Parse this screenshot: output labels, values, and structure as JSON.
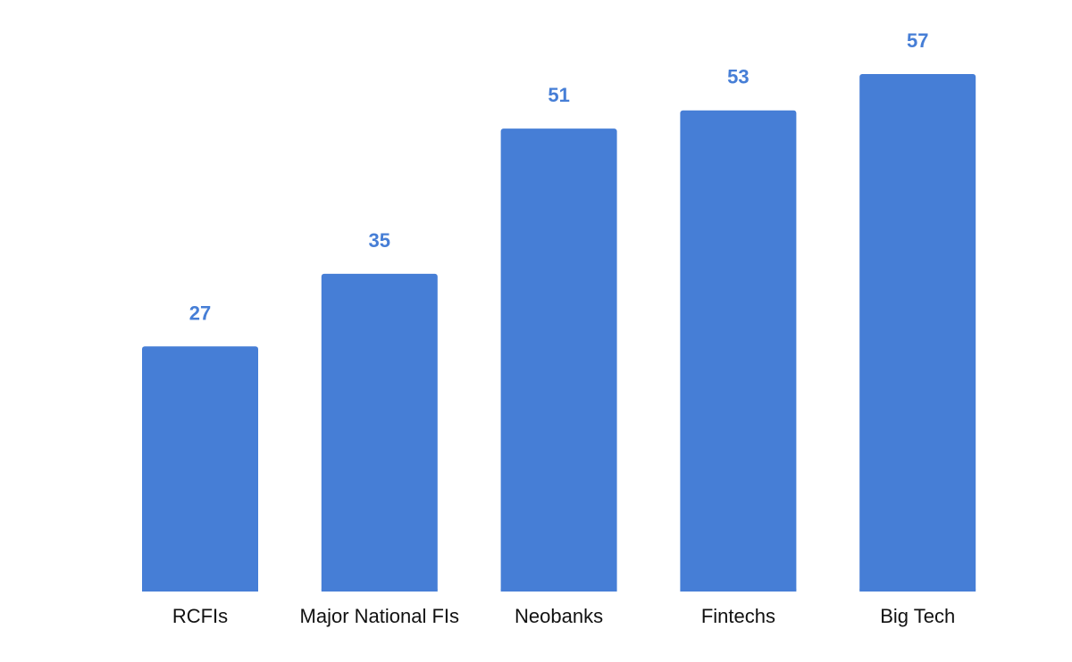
{
  "chart_data": {
    "type": "bar",
    "categories": [
      "RCFIs",
      "Major National FIs",
      "Neobanks",
      "Fintechs",
      "Big Tech"
    ],
    "values": [
      27,
      35,
      51,
      53,
      57
    ],
    "title": "",
    "xlabel": "",
    "ylabel": "",
    "ylim": [
      0,
      65
    ],
    "grid": false,
    "legend": "none",
    "data_labels": true
  },
  "colors": {
    "bar": "#467ed6",
    "value_label": "#467ed6",
    "category_label": "#111111",
    "background": "#ffffff"
  }
}
